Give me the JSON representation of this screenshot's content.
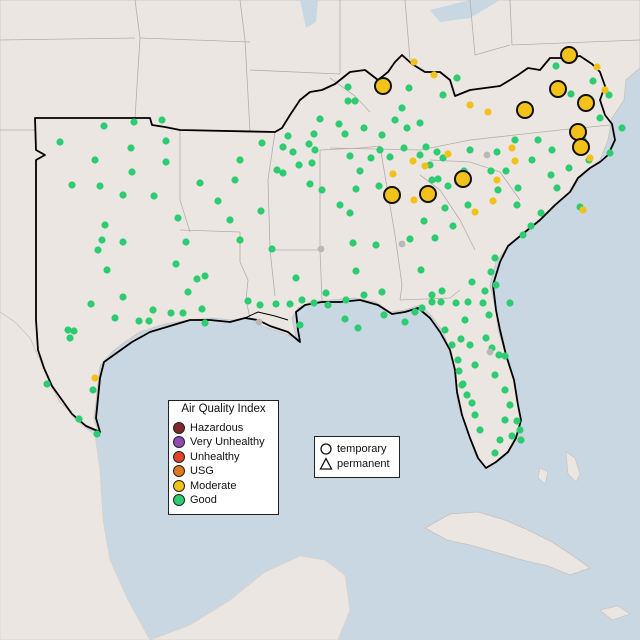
{
  "legend": {
    "title": "Air Quality Index",
    "categories": [
      {
        "label": "Hazardous",
        "color": "#7e2a2a"
      },
      {
        "label": "Very Unhealthy",
        "color": "#8f4ab6"
      },
      {
        "label": "Unhealthy",
        "color": "#e0422c"
      },
      {
        "label": "USG",
        "color": "#e07a1f"
      },
      {
        "label": "Moderate",
        "color": "#f2c21a"
      },
      {
        "label": "Good",
        "color": "#2ecc71"
      }
    ]
  },
  "monitor_types": {
    "temporary_label": "temporary",
    "permanent_label": "permanent"
  },
  "colors": {
    "water": "#c9d7e3",
    "land": "#ebe6e1",
    "outline": "#000000",
    "good": "#2ecc71",
    "moderate": "#f2c21a"
  }
}
